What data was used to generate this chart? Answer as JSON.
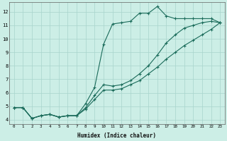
{
  "xlabel": "Humidex (Indice chaleur)",
  "ylabel": "",
  "bg_color": "#cceee6",
  "grid_color": "#a8d4cc",
  "line_color": "#1a6b5a",
  "xlim": [
    -0.5,
    23.5
  ],
  "ylim": [
    3.7,
    12.7
  ],
  "xticks": [
    0,
    1,
    2,
    3,
    4,
    5,
    6,
    7,
    8,
    9,
    10,
    11,
    12,
    13,
    14,
    15,
    16,
    17,
    18,
    19,
    20,
    21,
    22,
    23
  ],
  "yticks": [
    4,
    5,
    6,
    7,
    8,
    9,
    10,
    11,
    12
  ],
  "line1_x": [
    0,
    1,
    2,
    3,
    4,
    5,
    6,
    7,
    8,
    9,
    10,
    11,
    12,
    13,
    14,
    15,
    16,
    17,
    18,
    19,
    20,
    21,
    22,
    23
  ],
  "line1_y": [
    4.9,
    4.9,
    4.1,
    4.3,
    4.4,
    4.2,
    4.3,
    4.3,
    5.2,
    6.4,
    9.6,
    11.1,
    11.2,
    11.3,
    11.9,
    11.9,
    12.4,
    11.7,
    11.5,
    11.5,
    11.5,
    11.5,
    11.5,
    11.2
  ],
  "line2_x": [
    0,
    1,
    2,
    3,
    4,
    5,
    6,
    7,
    8,
    9,
    10,
    11,
    12,
    13,
    14,
    15,
    16,
    17,
    18,
    19,
    20,
    21,
    22,
    23
  ],
  "line2_y": [
    4.9,
    4.9,
    4.1,
    4.3,
    4.4,
    4.2,
    4.3,
    4.3,
    4.9,
    5.8,
    6.6,
    6.5,
    6.6,
    6.9,
    7.4,
    8.0,
    8.8,
    9.7,
    10.3,
    10.8,
    11.0,
    11.2,
    11.3,
    11.2
  ],
  "line3_x": [
    0,
    1,
    2,
    3,
    4,
    5,
    6,
    7,
    8,
    9,
    10,
    11,
    12,
    13,
    14,
    15,
    16,
    17,
    18,
    19,
    20,
    21,
    22,
    23
  ],
  "line3_y": [
    4.9,
    4.9,
    4.1,
    4.3,
    4.4,
    4.2,
    4.3,
    4.3,
    4.8,
    5.5,
    6.2,
    6.2,
    6.3,
    6.6,
    6.9,
    7.4,
    7.9,
    8.5,
    9.0,
    9.5,
    9.9,
    10.3,
    10.7,
    11.2
  ]
}
